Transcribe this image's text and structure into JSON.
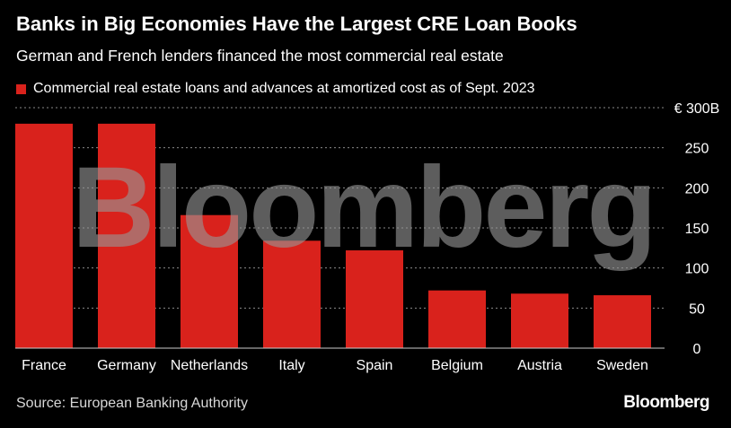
{
  "header": {
    "title": "Banks in Big Economies Have the Largest CRE Loan Books",
    "subtitle": "German and French lenders financed the most commercial real estate"
  },
  "colors": {
    "bar": "#d9221c",
    "grid": "#8a8a8a",
    "background": "#000000"
  },
  "chart_data": {
    "type": "bar",
    "categories": [
      "France",
      "Germany",
      "Netherlands",
      "Italy",
      "Spain",
      "Belgium",
      "Austria",
      "Sweden"
    ],
    "series": [
      {
        "name": "Commercial real estate loans and advances at amortized cost as of Sept. 2023",
        "values": [
          280,
          280,
          166,
          134,
          122,
          72,
          68,
          66
        ]
      }
    ],
    "yticks": [
      {
        "value": 300,
        "label": "€ 300B"
      },
      {
        "value": 250,
        "label": "250"
      },
      {
        "value": 200,
        "label": "200"
      },
      {
        "value": 150,
        "label": "150"
      },
      {
        "value": 100,
        "label": "100"
      },
      {
        "value": 50,
        "label": "50"
      },
      {
        "value": 0,
        "label": "0"
      }
    ],
    "ylim": [
      0,
      300
    ],
    "grid": true,
    "legend_position": "top-left",
    "yaxis_position": "right"
  },
  "footer": {
    "source": "Source: European Banking Authority",
    "logo": "Bloomberg"
  },
  "watermark": "Bloomberg"
}
